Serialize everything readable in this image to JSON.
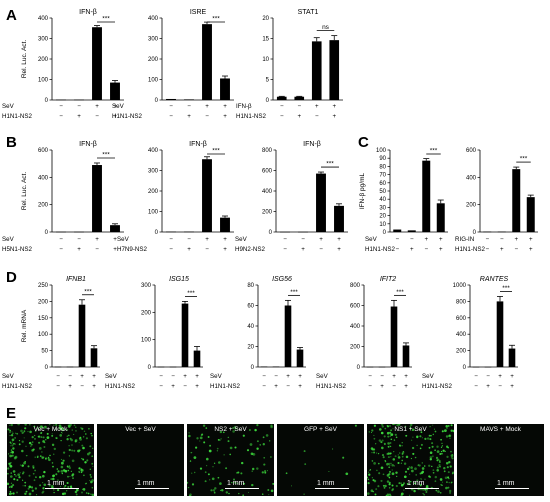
{
  "panel_labels": [
    "A",
    "B",
    "C",
    "D",
    "E"
  ],
  "ylabels": {
    "luc": "Rel. Luc. Act.",
    "ifn": "IFN-β pg/mL",
    "mrna": "Rel. mRNA"
  },
  "chart_data": [
    {
      "id": "A1",
      "panel": "A",
      "type": "bar",
      "title": "IFN-β",
      "ylabel": "Rel. Luc. Act.",
      "ylim": [
        0,
        400
      ],
      "yticks": [
        0,
        100,
        200,
        300,
        400
      ],
      "values": [
        2,
        2,
        355,
        85
      ],
      "errors": [
        1,
        1,
        8,
        10
      ],
      "sig": "***",
      "conditions": [
        {
          "label": "SeV",
          "signs": [
            "−",
            "−",
            "+",
            "+"
          ]
        },
        {
          "label": "H1N1-NS2",
          "signs": [
            "−",
            "+",
            "−",
            "+"
          ]
        }
      ]
    },
    {
      "id": "A2",
      "panel": "A",
      "type": "bar",
      "title": "ISRE",
      "ylabel": "",
      "ylim": [
        0,
        400
      ],
      "yticks": [
        0,
        100,
        200,
        300,
        400
      ],
      "values": [
        5,
        3,
        370,
        105
      ],
      "errors": [
        2,
        1,
        10,
        12
      ],
      "sig": "***",
      "conditions": [
        {
          "label": "SeV",
          "signs": [
            "−",
            "−",
            "+",
            "+"
          ]
        },
        {
          "label": "H1N1-NS2",
          "signs": [
            "−",
            "+",
            "−",
            "+"
          ]
        }
      ]
    },
    {
      "id": "A3",
      "panel": "A",
      "type": "bar",
      "title": "STAT1",
      "ylabel": "",
      "ylim": [
        0,
        20
      ],
      "yticks": [
        0,
        5,
        10,
        15,
        20
      ],
      "values": [
        0.8,
        0.8,
        14.3,
        14.6
      ],
      "errors": [
        0.1,
        0.1,
        0.9,
        1.1
      ],
      "sig": "ns",
      "conditions": [
        {
          "label": "IFN-β",
          "signs": [
            "−",
            "−",
            "+",
            "+"
          ]
        },
        {
          "label": "H1N1-NS2",
          "signs": [
            "−",
            "+",
            "−",
            "+"
          ]
        }
      ]
    },
    {
      "id": "B1",
      "panel": "B",
      "type": "bar",
      "title": "IFN-β",
      "ylabel": "Rel. Luc. Act.",
      "ylim": [
        0,
        600
      ],
      "yticks": [
        0,
        200,
        400,
        600
      ],
      "values": [
        2,
        2,
        490,
        50
      ],
      "errors": [
        1,
        1,
        15,
        10
      ],
      "sig": "***",
      "conditions": [
        {
          "label": "SeV",
          "signs": [
            "−",
            "−",
            "+",
            "+"
          ]
        },
        {
          "label": "H5N1-NS2",
          "signs": [
            "−",
            "+",
            "−",
            "+"
          ]
        }
      ]
    },
    {
      "id": "B2",
      "panel": "B",
      "type": "bar",
      "title": "IFN-β",
      "ylabel": "",
      "ylim": [
        0,
        400
      ],
      "yticks": [
        0,
        100,
        200,
        300,
        400
      ],
      "values": [
        2,
        2,
        355,
        70
      ],
      "errors": [
        1,
        1,
        12,
        8
      ],
      "sig": "***",
      "conditions": [
        {
          "label": "SeV",
          "signs": [
            "−",
            "−",
            "+",
            "+"
          ]
        },
        {
          "label": "H7N9-NS2",
          "signs": [
            "−",
            "+",
            "−",
            "+"
          ]
        }
      ]
    },
    {
      "id": "B3",
      "panel": "B",
      "type": "bar",
      "title": "IFN-β",
      "ylabel": "",
      "ylim": [
        0,
        800
      ],
      "yticks": [
        0,
        200,
        400,
        600,
        800
      ],
      "values": [
        2,
        2,
        570,
        255
      ],
      "errors": [
        1,
        1,
        15,
        20
      ],
      "sig": "***",
      "conditions": [
        {
          "label": "SeV",
          "signs": [
            "−",
            "−",
            "+",
            "+"
          ]
        },
        {
          "label": "H9N2-NS2",
          "signs": [
            "−",
            "+",
            "−",
            "+"
          ]
        }
      ]
    },
    {
      "id": "C1",
      "panel": "C",
      "type": "bar",
      "title": "",
      "ylabel": "IFN-β pg/mL",
      "ylim": [
        0,
        100
      ],
      "yticks": [
        0,
        10,
        20,
        30,
        40,
        50,
        60,
        70,
        80,
        90,
        100
      ],
      "values": [
        3,
        2,
        87,
        35
      ],
      "errors": [
        0.5,
        0.5,
        2.5,
        4
      ],
      "sig": "***",
      "conditions": [
        {
          "label": "SeV",
          "signs": [
            "−",
            "−",
            "+",
            "+"
          ]
        },
        {
          "label": "H1N1-NS2",
          "signs": [
            "−",
            "+",
            "−",
            "+"
          ]
        }
      ]
    },
    {
      "id": "C2",
      "panel": "C",
      "type": "bar",
      "title": "",
      "ylabel": "",
      "ylim": [
        0,
        600
      ],
      "yticks": [
        0,
        200,
        400,
        600
      ],
      "values": [
        3,
        3,
        460,
        255
      ],
      "errors": [
        1,
        1,
        15,
        15
      ],
      "sig": "***",
      "conditions": [
        {
          "label": "RIG-IN",
          "signs": [
            "−",
            "−",
            "+",
            "+"
          ]
        },
        {
          "label": "H1N1-NS2",
          "signs": [
            "−",
            "+",
            "−",
            "+"
          ]
        }
      ]
    },
    {
      "id": "D1",
      "panel": "D",
      "type": "bar",
      "title": "IFNB1",
      "italic": true,
      "ylabel": "Rel. mRNA",
      "ylim": [
        0,
        250
      ],
      "yticks": [
        0,
        50,
        100,
        150,
        200,
        250
      ],
      "values": [
        1,
        1,
        190,
        57
      ],
      "errors": [
        0.5,
        0.5,
        15,
        8
      ],
      "sig": "***",
      "conditions": [
        {
          "label": "SeV",
          "signs": [
            "−",
            "−",
            "+",
            "+"
          ]
        },
        {
          "label": "H1N1-NS2",
          "signs": [
            "−",
            "+",
            "−",
            "+"
          ]
        }
      ]
    },
    {
      "id": "D2",
      "panel": "D",
      "type": "bar",
      "title": "ISG15",
      "italic": true,
      "ylabel": "",
      "ylim": [
        0,
        300
      ],
      "yticks": [
        0,
        100,
        200,
        300
      ],
      "values": [
        1,
        1,
        232,
        60
      ],
      "errors": [
        0.5,
        0.5,
        8,
        15
      ],
      "sig": "***",
      "conditions": [
        {
          "label": "SeV",
          "signs": [
            "−",
            "−",
            "+",
            "+"
          ]
        },
        {
          "label": "H1N1-NS2",
          "signs": [
            "−",
            "+",
            "−",
            "+"
          ]
        }
      ]
    },
    {
      "id": "D3",
      "panel": "D",
      "type": "bar",
      "title": "ISG56",
      "italic": true,
      "ylabel": "",
      "ylim": [
        0,
        80
      ],
      "yticks": [
        0,
        20,
        40,
        60,
        80
      ],
      "values": [
        0.5,
        0.5,
        60,
        17
      ],
      "errors": [
        0.2,
        0.2,
        5,
        2
      ],
      "sig": "***",
      "conditions": [
        {
          "label": "SeV",
          "signs": [
            "−",
            "−",
            "+",
            "+"
          ]
        },
        {
          "label": "H1N1-NS2",
          "signs": [
            "−",
            "+",
            "−",
            "+"
          ]
        }
      ]
    },
    {
      "id": "D4",
      "panel": "D",
      "type": "bar",
      "title": "IFIT2",
      "italic": true,
      "ylabel": "",
      "ylim": [
        0,
        800
      ],
      "yticks": [
        0,
        200,
        400,
        600,
        800
      ],
      "values": [
        2,
        2,
        590,
        210
      ],
      "errors": [
        1,
        1,
        60,
        25
      ],
      "sig": "***",
      "conditions": [
        {
          "label": "SeV",
          "signs": [
            "−",
            "−",
            "+",
            "+"
          ]
        },
        {
          "label": "H1N1-NS2",
          "signs": [
            "−",
            "+",
            "−",
            "+"
          ]
        }
      ]
    },
    {
      "id": "D5",
      "panel": "D",
      "type": "bar",
      "title": "RANTES",
      "italic": true,
      "ylabel": "",
      "ylim": [
        0,
        1000
      ],
      "yticks": [
        0,
        200,
        400,
        600,
        800,
        1000
      ],
      "values": [
        2,
        2,
        800,
        225
      ],
      "errors": [
        1,
        1,
        60,
        40
      ],
      "sig": "***",
      "conditions": [
        {
          "label": "SeV",
          "signs": [
            "−",
            "−",
            "+",
            "+"
          ]
        },
        {
          "label": "H1N1-NS2",
          "signs": [
            "−",
            "+",
            "−",
            "+"
          ]
        }
      ]
    }
  ],
  "micrographs": [
    {
      "label": "Vec + Mock",
      "scale": "1 mm",
      "density": 0.95
    },
    {
      "label": "Vec + SeV",
      "scale": "1 mm",
      "density": 0.0
    },
    {
      "label": "NS2 + SeV",
      "scale": "1 mm",
      "density": 0.35
    },
    {
      "label": "GFP + SeV",
      "scale": "1 mm",
      "density": 0.03
    },
    {
      "label": "NS1 + SeV",
      "scale": "1 mm",
      "density": 0.95
    },
    {
      "label": "MAVS + Mock",
      "scale": "1 mm",
      "density": 0.0
    }
  ],
  "colors": {
    "bar": "#000000",
    "micro_bg": "#050805",
    "cell_green": "#3cd83c"
  }
}
